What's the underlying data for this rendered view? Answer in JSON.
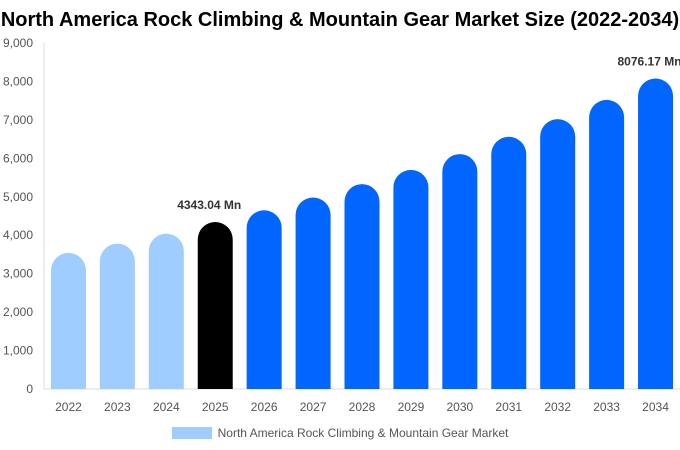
{
  "chart_data": {
    "type": "bar",
    "title": "North America Rock Climbing & Mountain Gear Market Size (2022-2034)",
    "categories": [
      "2022",
      "2023",
      "2024",
      "2025",
      "2026",
      "2027",
      "2028",
      "2029",
      "2030",
      "2031",
      "2032",
      "2033",
      "2034"
    ],
    "series": [
      {
        "name": "North America Rock Climbing & Mountain Gear Market",
        "values": [
          3540,
          3780,
          4040,
          4343.04,
          4650,
          4980,
          5330,
          5700,
          6110,
          6560,
          7020,
          7520,
          8076.17
        ]
      }
    ],
    "data_labels": {
      "3": "4343.04 Mn",
      "12": "8076.17 Mn"
    },
    "ylim": [
      0,
      9000
    ],
    "yticks": [
      "0",
      "1,000",
      "2,000",
      "3,000",
      "4,000",
      "5,000",
      "6,000",
      "7,000",
      "8,000",
      "9,000"
    ],
    "grid": false,
    "legend": "bottom",
    "colors": {
      "historical": "#a0cdff",
      "base_year": "#000000",
      "forecast": "#0066ff"
    }
  }
}
